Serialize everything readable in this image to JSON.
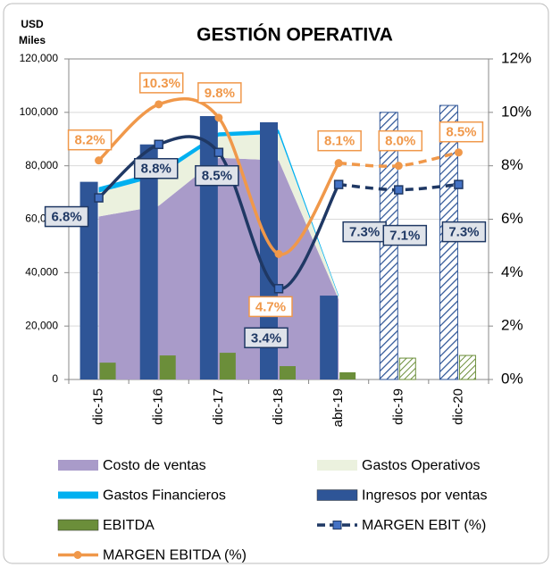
{
  "chart_data": {
    "type": "combo",
    "title": "GESTIÓN OPERATIVA",
    "ylabel": [
      "USD",
      "Miles"
    ],
    "categories": [
      "dic-15",
      "dic-16",
      "dic-17",
      "dic-18",
      "abr-19",
      "dic-19",
      "dic-20"
    ],
    "projected": [
      false,
      false,
      false,
      false,
      false,
      true,
      true
    ],
    "ylim": [
      0,
      120000
    ],
    "yticks": [
      0,
      {
        "value": 20000,
        "label": "20,000"
      },
      {
        "value": 40000,
        "label": "40,000"
      },
      {
        "value": 60000,
        "label": "60,000"
      },
      {
        "value": 80000,
        "label": "80,000"
      },
      {
        "value": 100000,
        "label": "100,000"
      },
      {
        "value": 120000,
        "label": "120,000"
      }
    ],
    "y2lim": [
      0,
      12
    ],
    "y2ticks": [
      {
        "value": 0,
        "label": "0%"
      },
      {
        "value": 2,
        "label": "2%"
      },
      {
        "value": 4,
        "label": "4%"
      },
      {
        "value": 6,
        "label": "6%"
      },
      {
        "value": 8,
        "label": "8%"
      },
      {
        "value": 10,
        "label": "10%"
      },
      {
        "value": 12,
        "label": "12%"
      }
    ],
    "grid": true,
    "series": [
      {
        "name": "Costo de ventas",
        "type": "area",
        "color": "#a99bc9",
        "values": [
          61000,
          65000,
          83000,
          82000,
          30000,
          null,
          null
        ]
      },
      {
        "name": "Gastos Operativos",
        "type": "area",
        "color": "#ebf1de",
        "values": [
          9000,
          11000,
          8000,
          10000,
          1000,
          null,
          null
        ]
      },
      {
        "name": "Gastos Financieros",
        "type": "area",
        "color": "#00b0f0",
        "values": [
          2000,
          2000,
          1500,
          1500,
          500,
          null,
          null
        ]
      },
      {
        "name": "Ingresos por ventas",
        "type": "bar",
        "color": "#2e5597",
        "values": [
          74000,
          88000,
          98600,
          96300,
          31400,
          100000,
          102600
        ]
      },
      {
        "name": "EBITDA",
        "type": "bar",
        "color": "#6b8e3a",
        "values": [
          6300,
          9000,
          10000,
          5000,
          2700,
          8000,
          9000
        ]
      },
      {
        "name": "MARGEN EBIT (%)",
        "type": "line",
        "axis": "y2",
        "color": "#1f3864",
        "values": [
          6.8,
          8.8,
          8.5,
          3.4,
          7.3,
          7.1,
          7.3
        ],
        "value_labels": [
          "6.8%",
          "8.8%",
          "8.5%",
          "3.4%",
          "7.3%",
          "7.1%",
          "7.3%"
        ]
      },
      {
        "name": "MARGEN EBITDA (%)",
        "type": "line",
        "axis": "y2",
        "color": "#f0984a",
        "values": [
          8.2,
          10.3,
          9.8,
          4.7,
          8.1,
          8.0,
          8.5
        ],
        "value_labels": [
          "8.2%",
          "10.3%",
          "9.8%",
          "4.7%",
          "8.1%",
          "8.0%",
          "8.5%"
        ]
      }
    ]
  }
}
